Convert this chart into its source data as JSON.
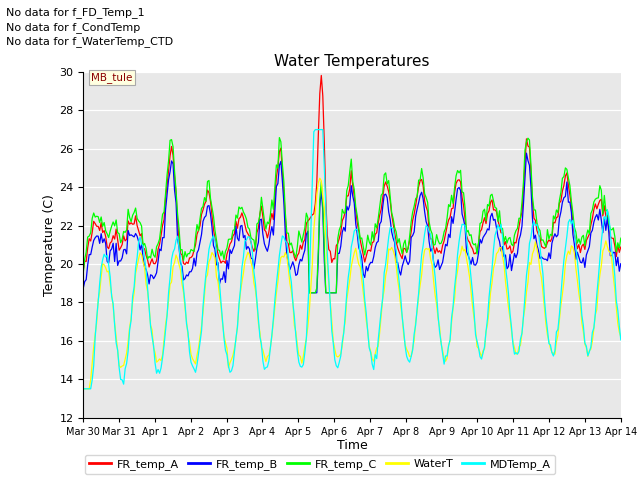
{
  "title": "Water Temperatures",
  "xlabel": "Time",
  "ylabel": "Temperature (C)",
  "ylim": [
    12,
    30
  ],
  "yticks": [
    12,
    14,
    16,
    18,
    20,
    22,
    24,
    26,
    28,
    30
  ],
  "text_annotations": [
    "No data for f_FD_Temp_1",
    "No data for f_CondTemp",
    "No data for f_WaterTemp_CTD"
  ],
  "mb_tule_label": "MB_tule",
  "legend_labels": [
    "FR_temp_A",
    "FR_temp_B",
    "FR_temp_C",
    "WaterT",
    "MDTemp_A"
  ],
  "line_colors": [
    "red",
    "blue",
    "lime",
    "yellow",
    "cyan"
  ],
  "x_tick_labels": [
    "Mar 30",
    "Mar 31",
    "Apr 1",
    "Apr 2",
    "Apr 3",
    "Apr 4",
    "Apr 5",
    "Apr 6",
    "Apr 7",
    "Apr 8",
    "Apr 9",
    "Apr 10",
    "Apr 11",
    "Apr 12",
    "Apr 13",
    "Apr 14"
  ],
  "x_tick_positions": [
    0,
    1,
    2,
    3,
    4,
    5,
    6,
    7,
    8,
    9,
    10,
    11,
    12,
    13,
    14,
    15
  ]
}
